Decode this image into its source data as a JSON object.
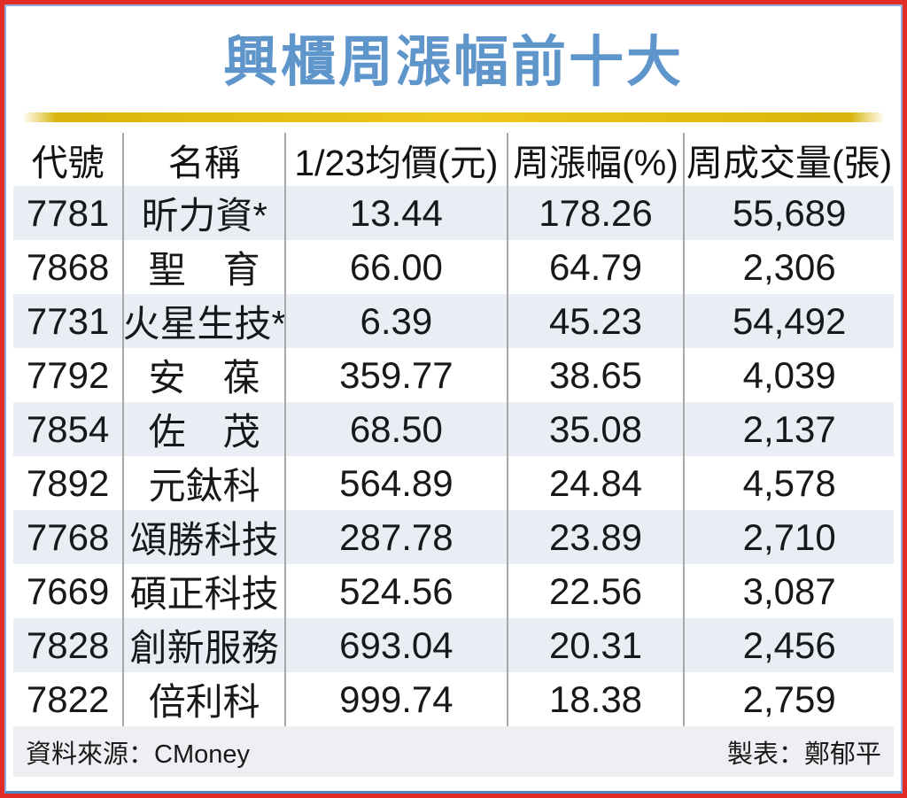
{
  "title": "興櫃周漲幅前十大",
  "table": {
    "headers": [
      "代號",
      "名稱",
      "1/23均價(元)",
      "周漲幅(%)",
      "周成交量(張)"
    ],
    "rows": [
      {
        "code": "7781",
        "name": "昕力資*",
        "price": "13.44",
        "change": "178.26",
        "volume": "55,689"
      },
      {
        "code": "7868",
        "name": "聖　育",
        "price": "66.00",
        "change": "64.79",
        "volume": "2,306"
      },
      {
        "code": "7731",
        "name": "火星生技*",
        "price": "6.39",
        "change": "45.23",
        "volume": "54,492"
      },
      {
        "code": "7792",
        "name": "安　葆",
        "price": "359.77",
        "change": "38.65",
        "volume": "4,039"
      },
      {
        "code": "7854",
        "name": "佐　茂",
        "price": "68.50",
        "change": "35.08",
        "volume": "2,137"
      },
      {
        "code": "7892",
        "name": "元鈦科",
        "price": "564.89",
        "change": "24.84",
        "volume": "4,578"
      },
      {
        "code": "7768",
        "name": "頌勝科技",
        "price": "287.78",
        "change": "23.89",
        "volume": "2,710"
      },
      {
        "code": "7669",
        "name": "碩正科技",
        "price": "524.56",
        "change": "22.56",
        "volume": "3,087"
      },
      {
        "code": "7828",
        "name": "創新服務",
        "price": "693.04",
        "change": "20.31",
        "volume": "2,456"
      },
      {
        "code": "7822",
        "name": "倍利科",
        "price": "999.74",
        "change": "18.38",
        "volume": "2,759"
      }
    ]
  },
  "footer": {
    "source": "資料來源：CMoney",
    "credit": "製表：鄭郁平"
  },
  "colors": {
    "title_blue": "#5e95cb",
    "divider_gold": "#d9b40c",
    "row_alt_bg": "#e9edf4",
    "footer_bg": "#edeff3",
    "border_red": "#e32b26",
    "border_blue": "#85afd9",
    "border_blue_bottom": "#4c86c6",
    "separator_grey": "#a8a8a8",
    "text_dark": "#17181a"
  },
  "chart_data": {
    "type": "table",
    "title": "興櫃周漲幅前十大",
    "columns": [
      "代號",
      "名稱",
      "1/23均價(元)",
      "周漲幅(%)",
      "周成交量(張)"
    ],
    "rows": [
      [
        "7781",
        "昕力資*",
        13.44,
        178.26,
        55689
      ],
      [
        "7868",
        "聖育",
        66.0,
        64.79,
        2306
      ],
      [
        "7731",
        "火星生技*",
        6.39,
        45.23,
        54492
      ],
      [
        "7792",
        "安葆",
        359.77,
        38.65,
        4039
      ],
      [
        "7854",
        "佐茂",
        68.5,
        35.08,
        2137
      ],
      [
        "7892",
        "元鈦科",
        564.89,
        24.84,
        4578
      ],
      [
        "7768",
        "頌勝科技",
        287.78,
        23.89,
        2710
      ],
      [
        "7669",
        "碩正科技",
        524.56,
        22.56,
        3087
      ],
      [
        "7828",
        "創新服務",
        693.04,
        20.31,
        2456
      ],
      [
        "7822",
        "倍利科",
        999.74,
        18.38,
        2759
      ]
    ],
    "source_label": "資料來源：CMoney",
    "credit_label": "製表：鄭郁平",
    "layout": "static newspaper table, alternating row shading, grey column separators, gold divider under blue title"
  }
}
